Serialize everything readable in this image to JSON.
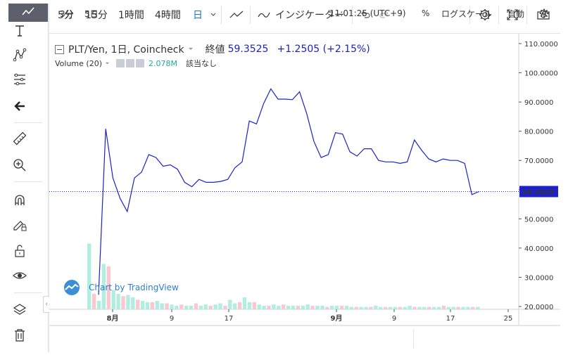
{
  "toolbar": {
    "intervals": [
      "5分",
      "15分",
      "1時間",
      "4時間",
      "日"
    ],
    "active_interval": "日",
    "indicators_label": "インジケーター"
  },
  "legend": {
    "symbol": "PLT/Yen, 1日, Coincheck",
    "close_label": "終値",
    "close_value": "59.3525",
    "change": "+1.2505 (+2.15%)",
    "volume_label": "Volume (20)",
    "volume_value": "2.078M",
    "volume_status": "該当なし"
  },
  "watermark": "Chart by TradingView",
  "bottom": {
    "range_5m": "3分",
    "range_5d": "5日",
    "time": "11:01:25 (UTC+9)",
    "percent": "%",
    "log_scale": "ログスケール",
    "auto": "自動"
  },
  "chart_data": {
    "type": "line",
    "price_series": {
      "color": "#1c22c8",
      "y": [
        24.0,
        80.8,
        64.0,
        57.0,
        52.5,
        64.0,
        66.0,
        72.0,
        71.0,
        68.0,
        68.5,
        67.0,
        62.5,
        61.0,
        63.5,
        62.5,
        62.5,
        62.8,
        63.5,
        67.5,
        69.5,
        83.5,
        82.5,
        89.5,
        94.5,
        91.0,
        91.0,
        90.8,
        93.5,
        86.0,
        76.5,
        71.0,
        72.0,
        79.5,
        79.0,
        73.0,
        71.5,
        74.0,
        74.0,
        70.0,
        69.5,
        69.5,
        69.0,
        69.5,
        77.0,
        73.5,
        70.5,
        69.5,
        70.5,
        70.0,
        70.0,
        69.0,
        58.3,
        59.35
      ]
    },
    "volume_series": {
      "values": [
        0.55,
        0.13,
        0.07,
        0.38,
        0.36,
        0.16,
        0.13,
        0.11,
        0.12,
        0.1,
        0.08,
        0.07,
        0.06,
        0.06,
        0.07,
        0.05,
        0.05,
        0.04,
        0.03,
        0.04,
        0.03,
        0.03,
        0.05,
        0.03,
        0.04,
        0.03,
        0.04,
        0.05,
        0.03,
        0.08,
        0.05,
        0.06,
        0.1,
        0.06,
        0.06,
        0.04,
        0.03,
        0.03,
        0.04,
        0.03,
        0.04,
        0.03,
        0.03,
        0.03,
        0.03,
        0.04,
        0.03,
        0.03,
        0.03,
        0.02,
        0.03,
        0.03,
        0.03,
        0.03,
        0.02,
        0.02,
        0.02,
        0.02,
        0.02,
        0.03,
        0.02,
        0.02,
        0.02,
        0.02,
        0.02,
        0.02,
        0.03,
        0.02,
        0.02,
        0.02,
        0.02,
        0.02,
        0.02,
        0.03,
        0.02,
        0.02,
        0.02,
        0.02,
        0.02,
        0.02,
        0.02
      ],
      "up_color": "#b2ede2",
      "down_color": "#f8c9d1"
    },
    "y_ticks": [
      "110.0000",
      "100.0000",
      "90.0000",
      "80.0000",
      "70.0000",
      "60.0000",
      "50.0000",
      "40.0000",
      "30.0000",
      "20.0000"
    ],
    "ylim": [
      20,
      110
    ],
    "x_ticks": [
      "8月",
      "9",
      "17",
      "9月",
      "9",
      "17",
      "25"
    ],
    "x_ticks_bold": [
      true,
      false,
      false,
      true,
      false,
      false,
      false
    ],
    "last_price": "59.3525",
    "last_price_value": 59.3525
  },
  "colors": {
    "accent": "#1e70d6",
    "line": "#1c22c8",
    "up": "#26a69a",
    "sidebar_top": "#5d606b"
  },
  "icons": [
    "chart-style-icon",
    "text-icon",
    "pattern-icon",
    "fib-icon",
    "back-arrow-icon",
    "ruler-icon",
    "zoom-icon",
    "magnet-icon",
    "lock-pencil-icon",
    "unlock-icon",
    "eye-icon",
    "layers-icon",
    "trash-icon",
    "settings-icon",
    "fullscreen-icon",
    "camera-icon"
  ]
}
